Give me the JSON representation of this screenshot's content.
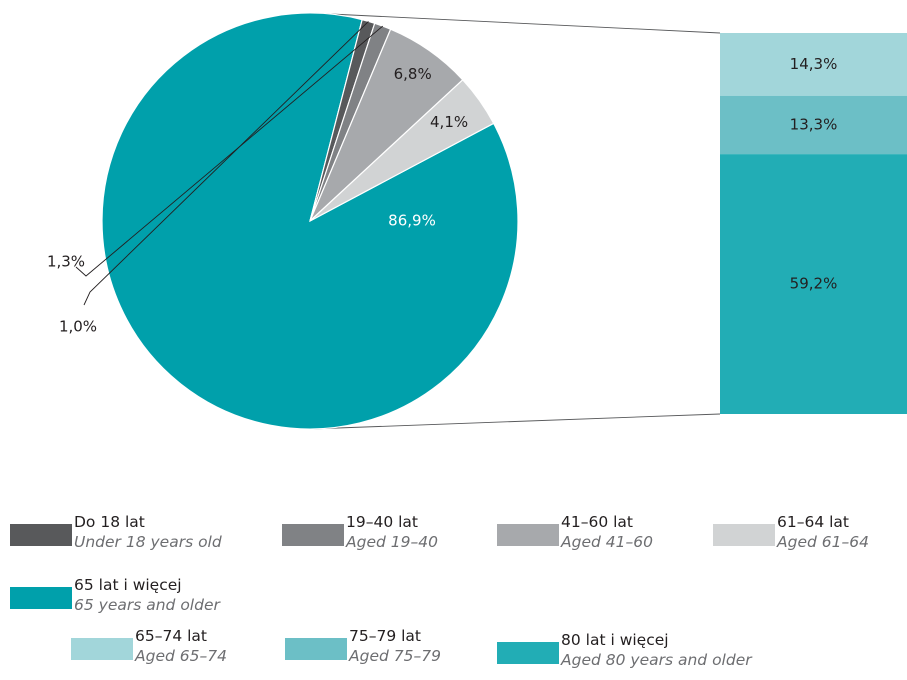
{
  "chart_data": {
    "type": "pie",
    "slices": [
      {
        "key": "teal",
        "value": 86.9,
        "label": "86,9%",
        "color": "#00a0ab"
      },
      {
        "key": "dark",
        "value": 1.0,
        "label": "1,0%",
        "color": "#58595b"
      },
      {
        "key": "mid",
        "value": 1.3,
        "label": "1,3%",
        "color": "#808285"
      },
      {
        "key": "gray",
        "value": 6.8,
        "label": "6,8%",
        "color": "#a7a9ac"
      },
      {
        "key": "light",
        "value": 4.1,
        "label": "4,1%",
        "color": "#d1d3d4"
      }
    ],
    "breakdown": {
      "of_slice": "teal",
      "segments": [
        {
          "value": 14.3,
          "label": "14,3%",
          "color": "#a2d6da"
        },
        {
          "value": 13.3,
          "label": "13,3%",
          "color": "#6cbfc6"
        },
        {
          "value": 59.2,
          "label": "59,2%",
          "color": "#22adb5"
        }
      ]
    }
  },
  "legend": [
    {
      "pl": "Do 18 lat",
      "en": "Under 18 years old",
      "color": "#58595b"
    },
    {
      "pl": "19–40 lat",
      "en": "Aged 19–40",
      "color": "#808285"
    },
    {
      "pl": "41–60 lat",
      "en": "Aged 41–60",
      "color": "#a7a9ac"
    },
    {
      "pl": "61–64 lat",
      "en": "Aged 61–64",
      "color": "#d1d3d4"
    },
    {
      "pl": "65 lat i więcej",
      "en": "65 years and older",
      "color": "#00a0ab"
    },
    {
      "pl": "65–74 lat",
      "en": "Aged 65–74",
      "color": "#a2d6da"
    },
    {
      "pl": "75–79 lat",
      "en": "Aged 75–79",
      "color": "#6cbfc6"
    },
    {
      "pl": "80 lat i więcej",
      "en": "Aged 80 years and older",
      "color": "#22adb5"
    }
  ]
}
